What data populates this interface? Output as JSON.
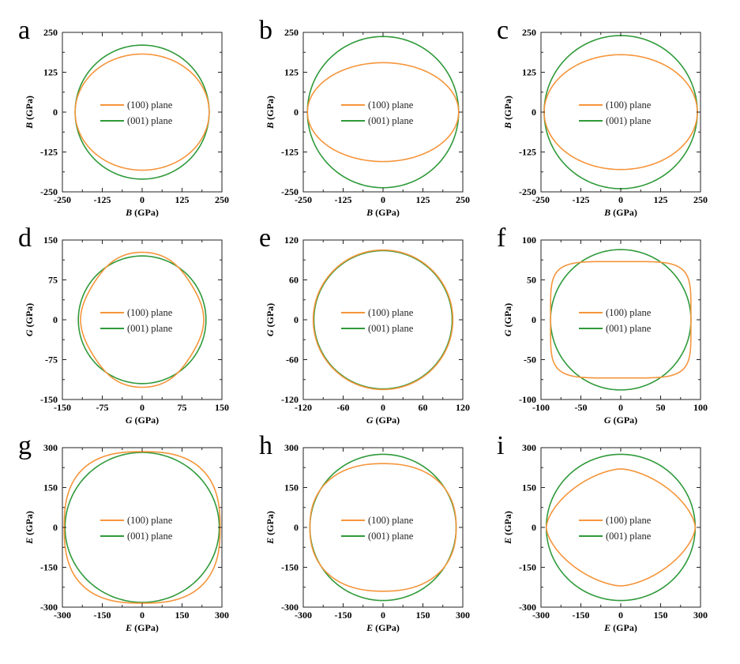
{
  "colors": {
    "plane100": "#f5953b",
    "plane001": "#2f9a3a",
    "frame": "#222222"
  },
  "chart_data": [
    {
      "type": "line",
      "panel": "a",
      "quantity": "B",
      "unit": "(GPa)",
      "xlabel_sym": "B",
      "ylabel_sym": "B",
      "xlim": [
        -250,
        250
      ],
      "ylim": [
        -250,
        250
      ],
      "xticks": [
        "-250",
        "-125",
        "0",
        "125",
        "250"
      ],
      "yticks": [
        "-250",
        "-125",
        "0",
        "125",
        "250"
      ],
      "legend": [
        "(100) plane",
        "(001) plane"
      ],
      "series": [
        {
          "name": "(100) plane",
          "shape": "ellipse",
          "a": 210,
          "b": 182
        },
        {
          "name": "(001) plane",
          "shape": "circle",
          "a": 210,
          "b": 210
        }
      ]
    },
    {
      "type": "line",
      "panel": "b",
      "quantity": "B",
      "unit": "(GPa)",
      "xlabel_sym": "B",
      "ylabel_sym": "B",
      "xlim": [
        -250,
        250
      ],
      "ylim": [
        -250,
        250
      ],
      "xticks": [
        "-250",
        "-125",
        "0",
        "125",
        "250"
      ],
      "yticks": [
        "-250",
        "-125",
        "0",
        "125",
        "250"
      ],
      "legend": [
        "(100) plane",
        "(001) plane"
      ],
      "series": [
        {
          "name": "(100) plane",
          "shape": "ellipse",
          "a": 237,
          "b": 155
        },
        {
          "name": "(001) plane",
          "shape": "circle",
          "a": 237,
          "b": 237
        }
      ]
    },
    {
      "type": "line",
      "panel": "c",
      "quantity": "B",
      "unit": "(GPa)",
      "xlabel_sym": "B",
      "ylabel_sym": "B",
      "xlim": [
        -250,
        250
      ],
      "ylim": [
        -250,
        250
      ],
      "xticks": [
        "-250",
        "-125",
        "0",
        "125",
        "250"
      ],
      "yticks": [
        "-250",
        "-125",
        "0",
        "125",
        "250"
      ],
      "legend": [
        "(100) plane",
        "(001) plane"
      ],
      "series": [
        {
          "name": "(100) plane",
          "shape": "ellipse",
          "a": 240,
          "b": 180
        },
        {
          "name": "(001) plane",
          "shape": "circle",
          "a": 240,
          "b": 240
        }
      ]
    },
    {
      "type": "line",
      "panel": "d",
      "quantity": "G",
      "unit": "(GPa)",
      "xlabel_sym": "G",
      "ylabel_sym": "G",
      "xlim": [
        -150,
        150
      ],
      "ylim": [
        -150,
        150
      ],
      "xticks": [
        "-150",
        "-75",
        "0",
        "75",
        "150"
      ],
      "yticks": [
        "-150",
        "-75",
        "0",
        "75",
        "150"
      ],
      "legend": [
        "(100) plane",
        "(001) plane"
      ],
      "series": [
        {
          "name": "(100) plane",
          "shape": "fourfold",
          "base": 120,
          "mod": 7,
          "phase": 0
        },
        {
          "name": "(001) plane",
          "shape": "circle",
          "a": 120,
          "b": 120
        }
      ]
    },
    {
      "type": "line",
      "panel": "e",
      "quantity": "G",
      "unit": "(GPa)",
      "xlabel_sym": "G",
      "ylabel_sym": "G",
      "xlim": [
        -120,
        120
      ],
      "ylim": [
        -120,
        120
      ],
      "xticks": [
        "-120",
        "-60",
        "0",
        "60",
        "120"
      ],
      "yticks": [
        "-120",
        "-60",
        "0",
        "60",
        "120"
      ],
      "legend": [
        "(100) plane",
        "(001) plane"
      ],
      "series": [
        {
          "name": "(100) plane",
          "shape": "circle",
          "a": 105,
          "b": 105
        },
        {
          "name": "(001) plane",
          "shape": "circle",
          "a": 104,
          "b": 104
        }
      ]
    },
    {
      "type": "line",
      "panel": "f",
      "quantity": "G",
      "unit": "(GPa)",
      "xlabel_sym": "G",
      "ylabel_sym": "G",
      "xlim": [
        -100,
        100
      ],
      "ylim": [
        -100,
        100
      ],
      "xticks": [
        "-100",
        "-50",
        "0",
        "50",
        "100"
      ],
      "yticks": [
        "-100",
        "-50",
        "0",
        "50",
        "100"
      ],
      "legend": [
        "(100) plane",
        "(001) plane"
      ],
      "series": [
        {
          "name": "(100) plane",
          "shape": "superellipse",
          "a": 88,
          "b": 73,
          "n": 5
        },
        {
          "name": "(001) plane",
          "shape": "circle",
          "a": 88,
          "b": 88
        }
      ]
    },
    {
      "type": "line",
      "panel": "g",
      "quantity": "E",
      "unit": "(GPa)",
      "xlabel_sym": "E",
      "ylabel_sym": "E",
      "xlim": [
        -300,
        300
      ],
      "ylim": [
        -300,
        300
      ],
      "xticks": [
        "-300",
        "-150",
        "0",
        "150",
        "300"
      ],
      "yticks": [
        "-300",
        "-150",
        "0",
        "150",
        "300"
      ],
      "legend": [
        "(100) plane",
        "(001) plane"
      ],
      "series": [
        {
          "name": "(100) plane",
          "shape": "superellipse",
          "a": 293,
          "b": 285,
          "n": 2.6
        },
        {
          "name": "(001) plane",
          "shape": "circle",
          "a": 290,
          "b": 282
        }
      ]
    },
    {
      "type": "line",
      "panel": "h",
      "quantity": "E",
      "unit": "(GPa)",
      "xlabel_sym": "E",
      "ylabel_sym": "E",
      "xlim": [
        -300,
        300
      ],
      "ylim": [
        -300,
        300
      ],
      "xticks": [
        "-300",
        "-150",
        "0",
        "150",
        "300"
      ],
      "yticks": [
        "-300",
        "-150",
        "0",
        "150",
        "300"
      ],
      "legend": [
        "(100) plane",
        "(001) plane"
      ],
      "series": [
        {
          "name": "(100) plane",
          "shape": "superellipse",
          "a": 275,
          "b": 240,
          "n": 2.3
        },
        {
          "name": "(001) plane",
          "shape": "circle",
          "a": 275,
          "b": 275
        }
      ]
    },
    {
      "type": "line",
      "panel": "i",
      "quantity": "E",
      "unit": "(GPa)",
      "xlabel_sym": "E",
      "ylabel_sym": "E",
      "xlim": [
        -300,
        300
      ],
      "ylim": [
        -300,
        300
      ],
      "xticks": [
        "-300",
        "-150",
        "0",
        "150",
        "300"
      ],
      "yticks": [
        "-300",
        "-150",
        "0",
        "150",
        "300"
      ],
      "legend": [
        "(100) plane",
        "(001) plane"
      ],
      "series": [
        {
          "name": "(100) plane",
          "shape": "diamond",
          "a": 280,
          "b": 220,
          "n": 1.6
        },
        {
          "name": "(001) plane",
          "shape": "circle",
          "a": 280,
          "b": 275
        }
      ]
    }
  ]
}
